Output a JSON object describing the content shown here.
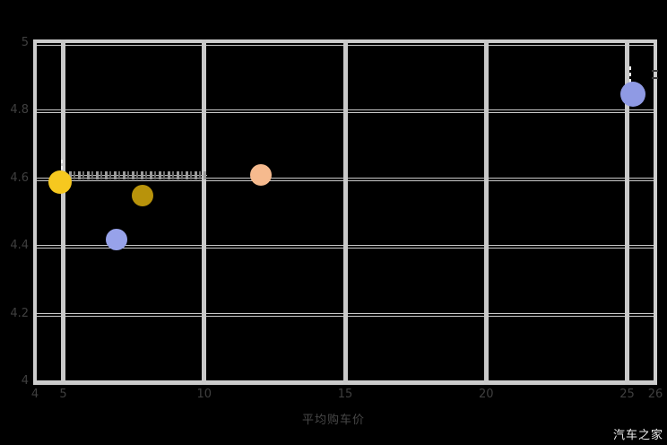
{
  "watermark": {
    "text": "汽车之家"
  },
  "chart_data": {
    "type": "scatter",
    "title": "",
    "xlabel": "平均购车价",
    "ylabel": "",
    "xlim": [
      4,
      26
    ],
    "ylim": [
      4,
      5
    ],
    "grid": true,
    "legend": "none",
    "background_color": "#000000",
    "grid_color": "#c9c9c9",
    "tick_label_color": "#3f3f3f",
    "x_ticks": [
      {
        "value": 4,
        "label": "4"
      },
      {
        "value": 5,
        "label": "5"
      },
      {
        "value": 10,
        "label": "10"
      },
      {
        "value": 15,
        "label": "15"
      },
      {
        "value": 20,
        "label": "20"
      },
      {
        "value": 25,
        "label": "25"
      },
      {
        "value": 26,
        "label": "26"
      }
    ],
    "y_ticks": [
      {
        "value": 5,
        "label": "5"
      },
      {
        "value": 4.8,
        "label": "4.8"
      },
      {
        "value": 4.6,
        "label": "4.6"
      },
      {
        "value": 4.4,
        "label": "4.4"
      },
      {
        "value": 4.2,
        "label": "4.2"
      },
      {
        "value": 4,
        "label": "4"
      }
    ],
    "points": [
      {
        "x": 4.9,
        "y": 4.59,
        "r": 13,
        "color": "#f6c81f",
        "name": "bubble-yellow"
      },
      {
        "x": 6.9,
        "y": 4.42,
        "r": 12,
        "color": "#97a2ea",
        "name": "bubble-blue"
      },
      {
        "x": 7.8,
        "y": 4.55,
        "r": 12,
        "color": "#b8930b",
        "name": "bubble-dark-gold"
      },
      {
        "x": 12.0,
        "y": 4.61,
        "r": 12,
        "color": "#f6ba8e",
        "name": "bubble-peach"
      },
      {
        "x": 25.2,
        "y": 4.85,
        "r": 14,
        "color": "#8f9ae4",
        "name": "bubble-periwinkle"
      }
    ],
    "decorations": {
      "leader_line": {
        "x1": 4.9,
        "x2": 10.1,
        "y": 4.61,
        "note": "micro-text annotation, illegible in source"
      },
      "error_dashes": [
        {
          "x": 4.95,
          "y1": 4.655,
          "y2": 4.605
        },
        {
          "x": 25.12,
          "y1": 4.93,
          "y2": 4.87
        }
      ],
      "edge_ticks": [
        {
          "x": 26,
          "y": 4.92
        },
        {
          "x": 26,
          "y": 4.9
        }
      ]
    }
  }
}
